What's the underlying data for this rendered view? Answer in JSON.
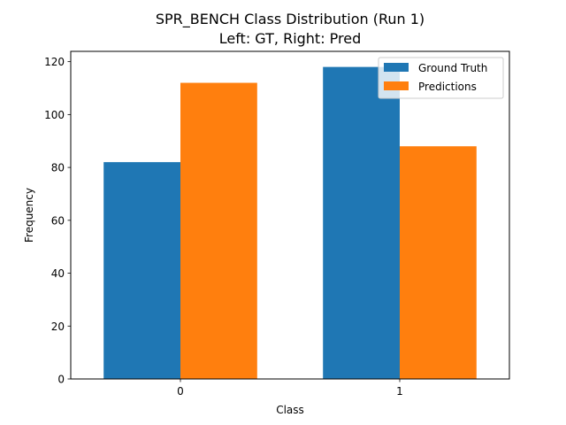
{
  "chart_data": {
    "type": "bar",
    "title": "SPR_BENCH Class Distribution (Run 1)",
    "subtitle": "Left: GT, Right: Pred",
    "xlabel": "Class",
    "ylabel": "Frequency",
    "categories": [
      "0",
      "1"
    ],
    "series": [
      {
        "name": "Ground Truth",
        "values": [
          82,
          118
        ],
        "color": "#1f77b4"
      },
      {
        "name": "Predictions",
        "values": [
          112,
          88
        ],
        "color": "#ff7f0e"
      }
    ],
    "ylim": [
      0,
      123.9
    ],
    "yticks": [
      0,
      20,
      40,
      60,
      80,
      100,
      120
    ],
    "grid": false,
    "legend_position": "top-right"
  }
}
